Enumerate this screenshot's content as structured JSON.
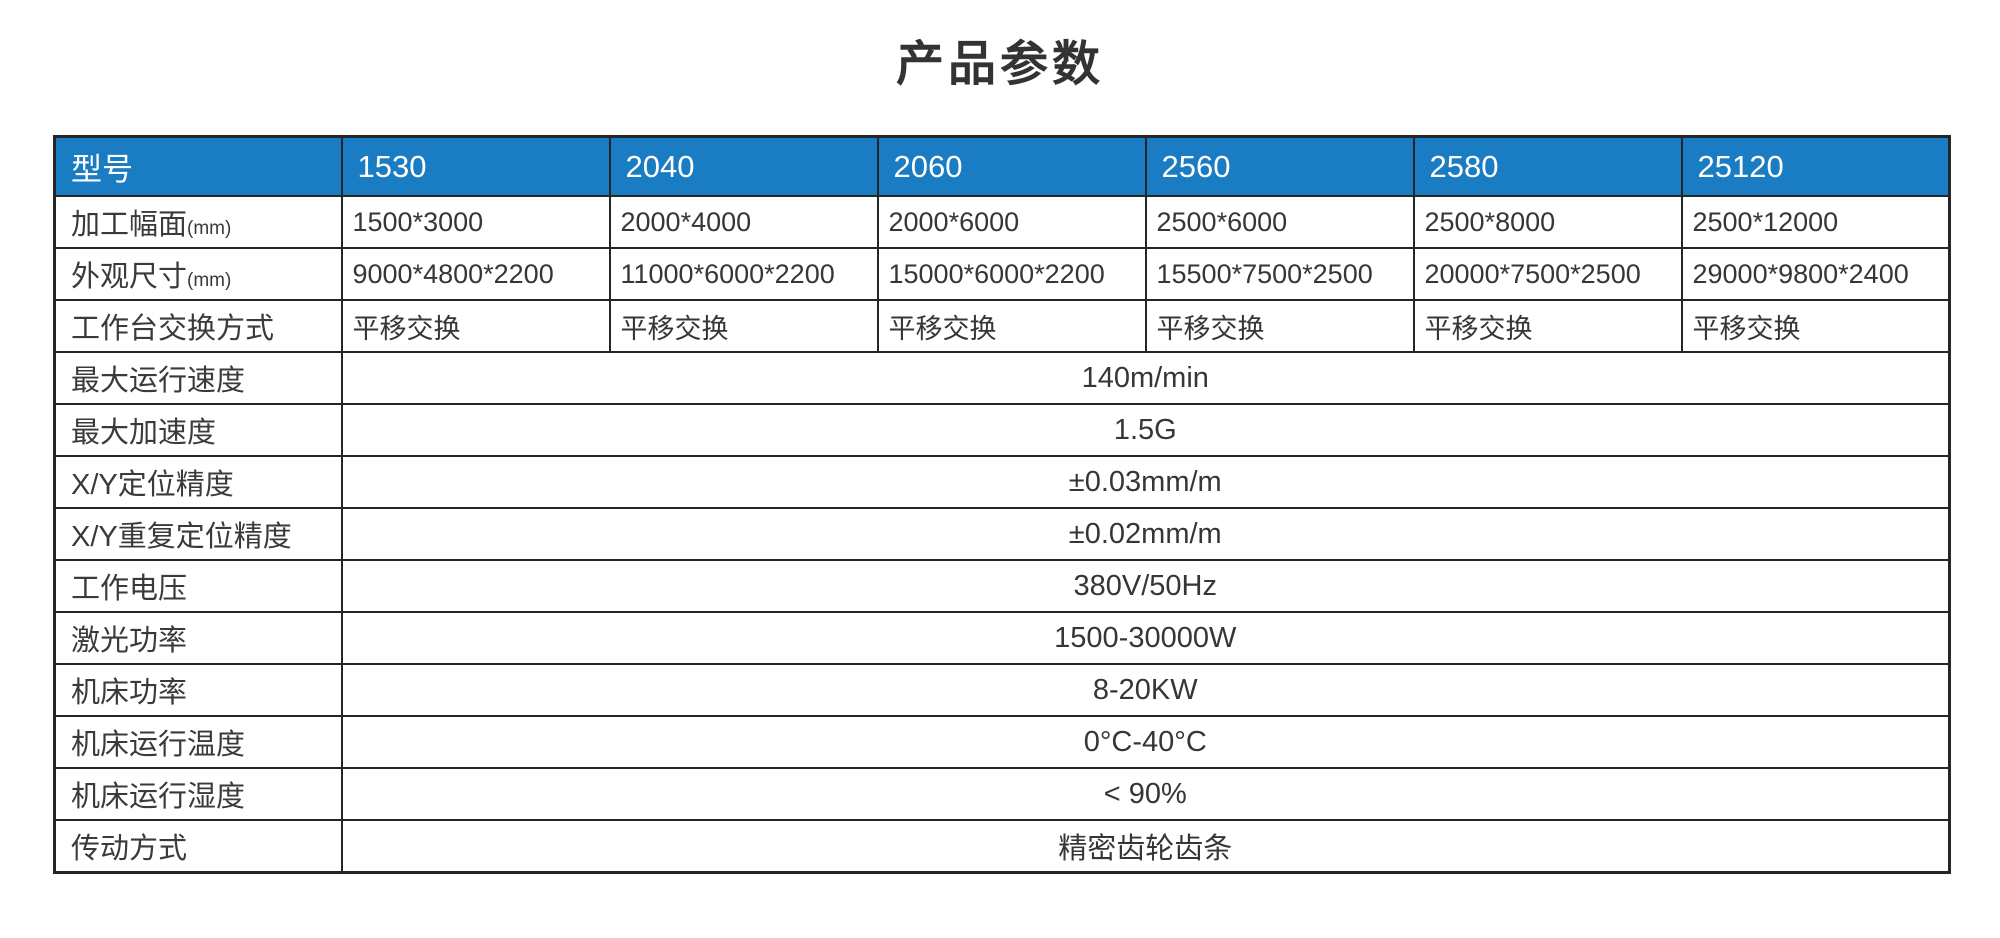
{
  "page": {
    "title": "产品参数"
  },
  "colors": {
    "header_bg": "#1a7cc2",
    "header_text": "#ffffff",
    "border": "#262626",
    "text": "#363636"
  },
  "table": {
    "header": {
      "label": "型号",
      "models": [
        "1530",
        "2040",
        "2060",
        "2560",
        "2580",
        "25120"
      ]
    },
    "per_model_rows": [
      {
        "label": "加工幅面",
        "unit": "(mm)",
        "values": [
          "1500*3000",
          "2000*4000",
          "2000*6000",
          "2500*6000",
          "2500*8000",
          "2500*12000"
        ]
      },
      {
        "label": "外观尺寸",
        "unit": "(mm)",
        "values": [
          "9000*4800*2200",
          "11000*6000*2200",
          "15000*6000*2200",
          "15500*7500*2500",
          "20000*7500*2500",
          "29000*9800*2400"
        ]
      },
      {
        "label": "工作台交换方式",
        "unit": "",
        "values": [
          "平移交换",
          "平移交换",
          "平移交换",
          "平移交换",
          "平移交换",
          "平移交换"
        ]
      }
    ],
    "spanned_rows": [
      {
        "label": "最大运行速度",
        "value": "140m/min"
      },
      {
        "label": "最大加速度",
        "value": "1.5G"
      },
      {
        "label": "X/Y定位精度",
        "value": "±0.03mm/m"
      },
      {
        "label": "X/Y重复定位精度",
        "value": "±0.02mm/m"
      },
      {
        "label": "工作电压",
        "value": "380V/50Hz"
      },
      {
        "label": "激光功率",
        "value": "1500-30000W"
      },
      {
        "label": "机床功率",
        "value": "8-20KW"
      },
      {
        "label": "机床运行温度",
        "value": "0°C-40°C"
      },
      {
        "label": "机床运行湿度",
        "value": "< 90%"
      },
      {
        "label": "传动方式",
        "value": "精密齿轮齿条"
      }
    ]
  }
}
